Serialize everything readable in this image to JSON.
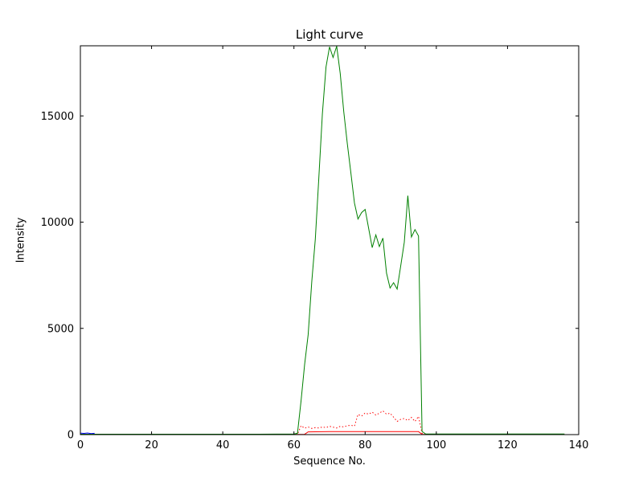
{
  "figure": {
    "background": "#ffffff",
    "axes_edge_color": "#000000",
    "tick_color": "#000000"
  },
  "chart_data": {
    "type": "line",
    "title": "Light curve",
    "xlabel": "Sequence No.",
    "ylabel": "Intensity",
    "xlim": [
      0,
      140
    ],
    "ylim": [
      0,
      18300
    ],
    "xticks": [
      0,
      20,
      40,
      60,
      80,
      100,
      120,
      140
    ],
    "yticks": [
      0,
      5000,
      10000,
      15000
    ],
    "grid": false,
    "legend": null,
    "series": [
      {
        "name": "blue",
        "color": "#0000ff",
        "linestyle": "solid",
        "points": [
          [
            0,
            70
          ],
          [
            1,
            55
          ],
          [
            2,
            75
          ],
          [
            3,
            50
          ],
          [
            4,
            60
          ]
        ]
      },
      {
        "name": "red-solid",
        "color": "#ff0000",
        "linestyle": "solid",
        "points": [
          [
            0,
            10
          ],
          [
            20,
            10
          ],
          [
            40,
            10
          ],
          [
            60,
            10
          ],
          [
            63,
            15
          ],
          [
            64,
            130
          ],
          [
            70,
            140
          ],
          [
            80,
            140
          ],
          [
            90,
            140
          ],
          [
            95,
            140
          ],
          [
            96,
            15
          ],
          [
            100,
            10
          ],
          [
            120,
            10
          ],
          [
            136,
            10
          ]
        ]
      },
      {
        "name": "red-dotted",
        "color": "#ff0000",
        "linestyle": "dotted",
        "points": [
          [
            0,
            5
          ],
          [
            20,
            5
          ],
          [
            40,
            5
          ],
          [
            60,
            5
          ],
          [
            61,
            10
          ],
          [
            62,
            420
          ],
          [
            63,
            300
          ],
          [
            64,
            360
          ],
          [
            65,
            290
          ],
          [
            66,
            330
          ],
          [
            67,
            310
          ],
          [
            68,
            360
          ],
          [
            69,
            330
          ],
          [
            70,
            390
          ],
          [
            71,
            350
          ],
          [
            72,
            310
          ],
          [
            73,
            390
          ],
          [
            74,
            360
          ],
          [
            75,
            420
          ],
          [
            76,
            440
          ],
          [
            77,
            400
          ],
          [
            78,
            950
          ],
          [
            79,
            870
          ],
          [
            80,
            1020
          ],
          [
            81,
            960
          ],
          [
            82,
            1060
          ],
          [
            83,
            920
          ],
          [
            84,
            1010
          ],
          [
            85,
            1120
          ],
          [
            86,
            960
          ],
          [
            87,
            1010
          ],
          [
            88,
            820
          ],
          [
            89,
            620
          ],
          [
            90,
            720
          ],
          [
            91,
            760
          ],
          [
            92,
            660
          ],
          [
            93,
            810
          ],
          [
            94,
            620
          ],
          [
            95,
            860
          ],
          [
            96,
            60
          ],
          [
            97,
            5
          ],
          [
            120,
            5
          ],
          [
            136,
            5
          ]
        ]
      },
      {
        "name": "green",
        "color": "#008000",
        "linestyle": "solid",
        "points": [
          [
            0,
            20
          ],
          [
            10,
            20
          ],
          [
            20,
            20
          ],
          [
            30,
            20
          ],
          [
            40,
            20
          ],
          [
            50,
            20
          ],
          [
            60,
            25
          ],
          [
            61,
            60
          ],
          [
            62,
            1600
          ],
          [
            63,
            3300
          ],
          [
            64,
            4700
          ],
          [
            65,
            7200
          ],
          [
            66,
            9200
          ],
          [
            67,
            12100
          ],
          [
            68,
            15100
          ],
          [
            69,
            17300
          ],
          [
            70,
            18250
          ],
          [
            71,
            17750
          ],
          [
            72,
            18280
          ],
          [
            73,
            17000
          ],
          [
            74,
            15200
          ],
          [
            75,
            13700
          ],
          [
            76,
            12300
          ],
          [
            77,
            10900
          ],
          [
            78,
            10150
          ],
          [
            79,
            10450
          ],
          [
            80,
            10600
          ],
          [
            81,
            9700
          ],
          [
            82,
            8800
          ],
          [
            83,
            9400
          ],
          [
            84,
            8850
          ],
          [
            85,
            9250
          ],
          [
            86,
            7600
          ],
          [
            87,
            6900
          ],
          [
            88,
            7150
          ],
          [
            89,
            6850
          ],
          [
            90,
            7950
          ],
          [
            91,
            9050
          ],
          [
            92,
            11250
          ],
          [
            93,
            9300
          ],
          [
            94,
            9650
          ],
          [
            95,
            9350
          ],
          [
            96,
            150
          ],
          [
            97,
            25
          ],
          [
            110,
            25
          ],
          [
            120,
            25
          ],
          [
            136,
            25
          ]
        ]
      }
    ]
  }
}
